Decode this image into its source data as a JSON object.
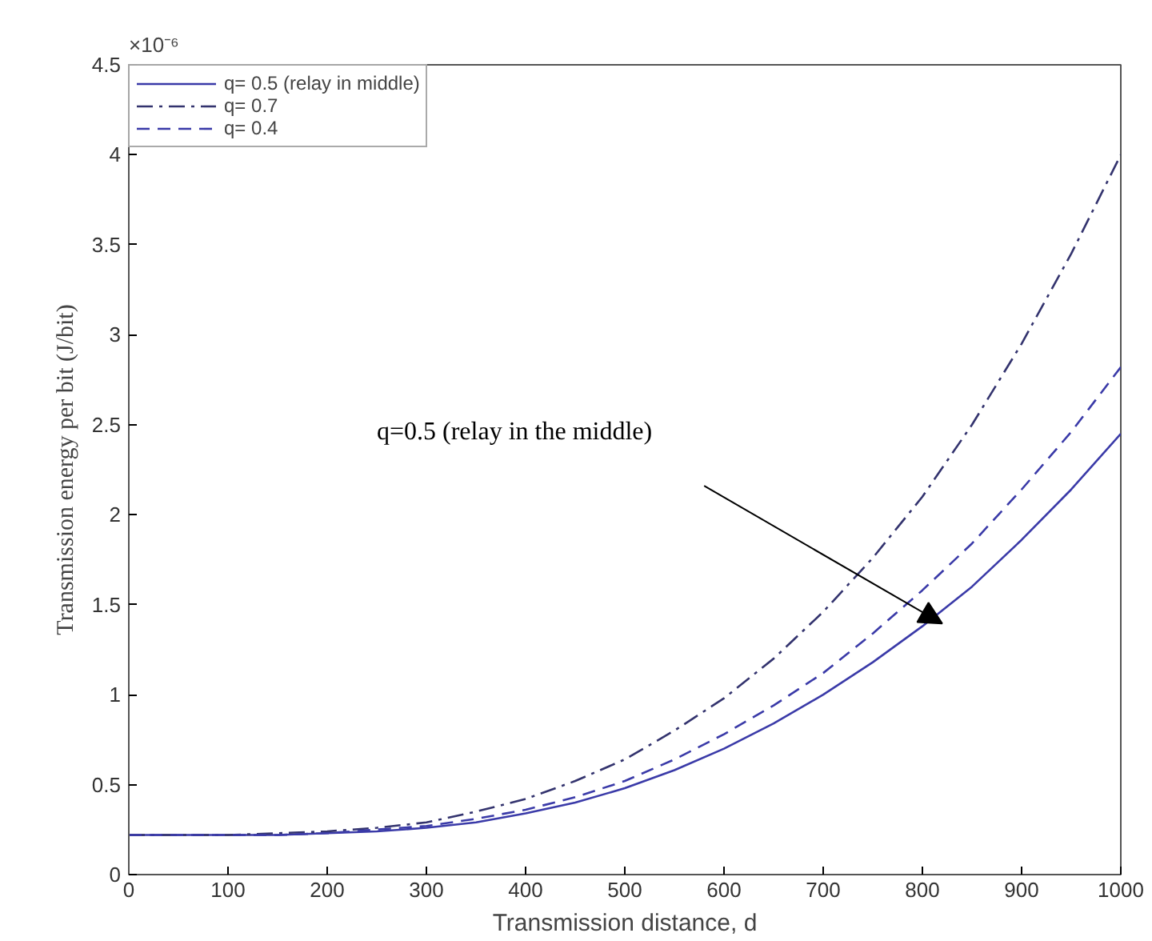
{
  "chart_data": {
    "type": "line",
    "xlabel": "Transmission distance, d",
    "ylabel": "Transmission energy per bit (J/bit)",
    "x": [
      0,
      50,
      100,
      150,
      200,
      250,
      300,
      350,
      400,
      450,
      500,
      550,
      600,
      650,
      700,
      750,
      800,
      850,
      900,
      950,
      1000
    ],
    "series": [
      {
        "name": "q= 0.5 (relay in middle)",
        "color": "#3a3aa8",
        "line_style": "solid",
        "values": [
          0.22,
          0.22,
          0.22,
          0.22,
          0.23,
          0.24,
          0.26,
          0.29,
          0.34,
          0.4,
          0.48,
          0.58,
          0.7,
          0.84,
          1.0,
          1.18,
          1.38,
          1.6,
          1.86,
          2.14,
          2.45
        ]
      },
      {
        "name": "q= 0.7",
        "color": "#33336e",
        "line_style": "dashdot",
        "values": [
          0.22,
          0.22,
          0.22,
          0.23,
          0.24,
          0.26,
          0.29,
          0.35,
          0.42,
          0.52,
          0.64,
          0.8,
          0.98,
          1.2,
          1.46,
          1.76,
          2.1,
          2.5,
          2.95,
          3.45,
          4.0
        ]
      },
      {
        "name": "q= 0.4",
        "color": "#3a3aa8",
        "line_style": "dashed",
        "values": [
          0.22,
          0.22,
          0.22,
          0.22,
          0.23,
          0.25,
          0.27,
          0.31,
          0.36,
          0.43,
          0.52,
          0.64,
          0.78,
          0.94,
          1.12,
          1.34,
          1.58,
          1.84,
          2.14,
          2.46,
          2.82
        ]
      }
    ],
    "xlim": [
      0,
      1000
    ],
    "ylim": [
      0,
      4.5
    ],
    "xticks": [
      0,
      100,
      200,
      300,
      400,
      500,
      600,
      700,
      800,
      900,
      1000
    ],
    "yticks": [
      0,
      0.5,
      1,
      1.5,
      2,
      2.5,
      3,
      3.5,
      4,
      4.5
    ],
    "annotations": [
      "×10⁻⁶",
      "q=0.5 (relay in the middle)"
    ],
    "grid": false,
    "legend": "top left",
    "marker": "none"
  }
}
